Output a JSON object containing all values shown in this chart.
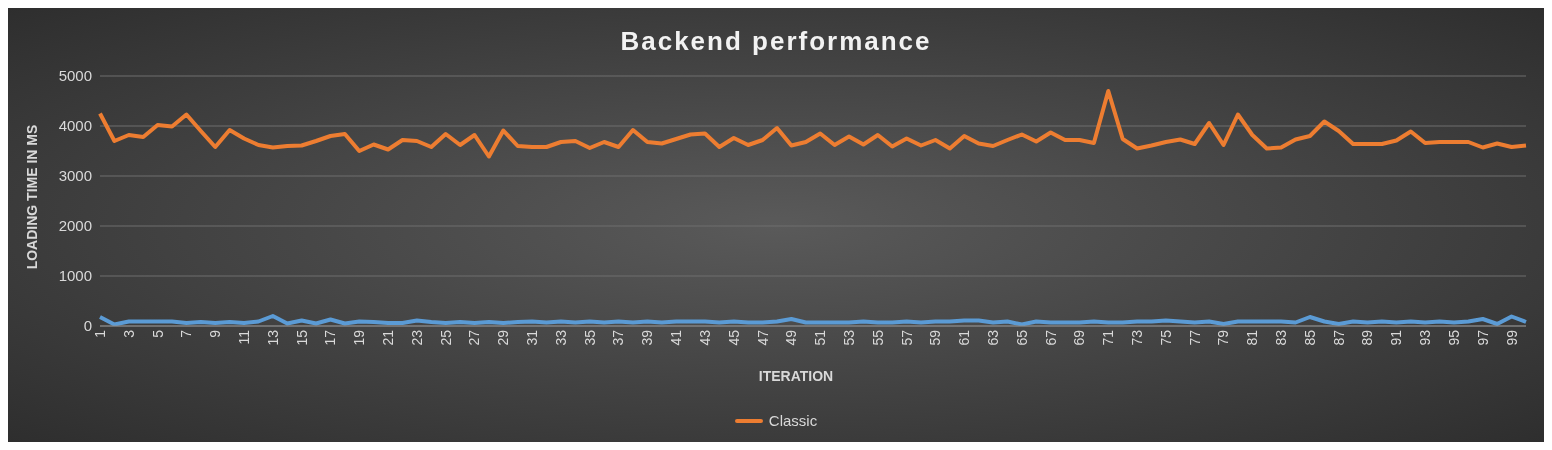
{
  "chart_data": {
    "type": "line",
    "title": "Backend performance",
    "xlabel": "ITERATION",
    "ylabel": "LOADING TIME IN MS",
    "categories": [
      "1",
      null,
      "3",
      null,
      "5",
      null,
      "7",
      null,
      "9",
      null,
      "11",
      null,
      "13",
      null,
      "15",
      null,
      "17",
      null,
      "19",
      null,
      "21",
      null,
      "23",
      null,
      "25",
      null,
      "27",
      null,
      "29",
      null,
      "31",
      null,
      "33",
      null,
      "35",
      null,
      "37",
      null,
      "39",
      null,
      "41",
      null,
      "43",
      null,
      "45",
      null,
      "47",
      null,
      "49",
      null,
      "51",
      null,
      "53",
      null,
      "55",
      null,
      "57",
      null,
      "59",
      null,
      "61",
      null,
      "63",
      null,
      "65",
      null,
      "67",
      null,
      "69",
      null,
      "71",
      null,
      "73",
      null,
      "75",
      null,
      "77",
      null,
      "79",
      null,
      "81",
      null,
      "83",
      null,
      "85",
      null,
      "87",
      null,
      "89",
      null,
      "91",
      null,
      "93",
      null,
      "95",
      null,
      "97",
      null,
      "99",
      null
    ],
    "series": [
      {
        "color": "#5b9bd5",
        "values": [
          180,
          30,
          90,
          90,
          90,
          90,
          60,
          80,
          60,
          80,
          60,
          90,
          200,
          50,
          110,
          50,
          130,
          50,
          90,
          80,
          60,
          60,
          110,
          80,
          60,
          80,
          60,
          80,
          60,
          80,
          90,
          70,
          90,
          70,
          90,
          70,
          90,
          70,
          90,
          70,
          90,
          90,
          90,
          70,
          90,
          70,
          70,
          90,
          140,
          70,
          70,
          70,
          70,
          90,
          70,
          70,
          90,
          70,
          90,
          90,
          110,
          110,
          70,
          90,
          30,
          90,
          70,
          70,
          70,
          90,
          70,
          70,
          90,
          90,
          110,
          90,
          70,
          90,
          40,
          90,
          90,
          90,
          90,
          70,
          180,
          90,
          40,
          90,
          70,
          90,
          70,
          90,
          70,
          90,
          70,
          90,
          140,
          40,
          190,
          80
        ]
      },
      {
        "name": "Classic",
        "color": "#ed7d31",
        "values": [
          4250,
          3700,
          3820,
          3780,
          4020,
          3990,
          4230,
          3900,
          3580,
          3920,
          3750,
          3620,
          3570,
          3600,
          3610,
          3700,
          3800,
          3840,
          3500,
          3630,
          3530,
          3720,
          3700,
          3580,
          3840,
          3620,
          3820,
          3390,
          3910,
          3600,
          3580,
          3580,
          3680,
          3700,
          3560,
          3680,
          3580,
          3920,
          3680,
          3650,
          3740,
          3830,
          3850,
          3580,
          3760,
          3620,
          3720,
          3960,
          3610,
          3680,
          3850,
          3620,
          3790,
          3630,
          3820,
          3590,
          3750,
          3610,
          3720,
          3550,
          3800,
          3650,
          3600,
          3720,
          3830,
          3690,
          3870,
          3720,
          3720,
          3660,
          4700,
          3740,
          3550,
          3610,
          3680,
          3730,
          3640,
          4060,
          3620,
          4230,
          3820,
          3550,
          3570,
          3730,
          3800,
          4090,
          3900,
          3640,
          3640,
          3640,
          3710,
          3890,
          3660,
          3680,
          3680,
          3680,
          3570,
          3650,
          3580,
          3610
        ]
      }
    ],
    "ylim": [
      0,
      5000
    ],
    "yticks": [
      0,
      1000,
      2000,
      3000,
      4000,
      5000
    ],
    "grid": "y",
    "legend": "bottom",
    "marker": "none",
    "line_style": "solid"
  }
}
